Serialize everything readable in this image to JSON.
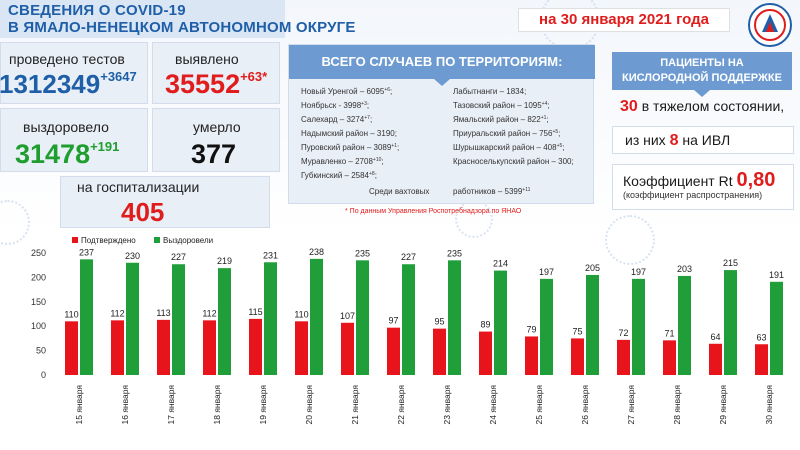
{
  "header": {
    "title_line1": "СВЕДЕНИЯ О COVID-19",
    "title_line2": "В ЯМАЛО-НЕНЕЦКОМ АВТОНОМНОМ ОКРУГЕ",
    "date": "на 30 января 2021 года"
  },
  "stats": {
    "tests_label": "проведено тестов",
    "tests_value": "1312349",
    "tests_delta": "+3647",
    "detected_label": "выявлено",
    "detected_value": "35552",
    "detected_delta": "+63*",
    "recovered_label": "выздоровело",
    "recovered_value": "31478",
    "recovered_delta": "+191",
    "died_label": "умерло",
    "died_value": "377",
    "hosp_label": "на госпитализации",
    "hosp_value": "405"
  },
  "territories": {
    "heading": "ВСЕГО СЛУЧАЕВ ПО ТЕРРИТОРИЯМ:",
    "left": [
      {
        "name": "Новый Уренгой – 6095",
        "delta": "+6"
      },
      {
        "name": "Ноябрьск - 3998",
        "delta": "+3"
      },
      {
        "name": "Салехард – 3274",
        "delta": "+7"
      },
      {
        "name": "Надымский район – 3190",
        "delta": ""
      },
      {
        "name": "Пуровский район – 3089",
        "delta": "+1"
      },
      {
        "name": "Муравленко – 2708",
        "delta": "+10"
      },
      {
        "name": "Губкинский – 2584",
        "delta": "+8"
      }
    ],
    "right": [
      {
        "name": "Лабытнанги – 1834",
        "delta": ""
      },
      {
        "name": "Тазовский район – 1095",
        "delta": "+4"
      },
      {
        "name": "Ямальский район – 822",
        "delta": "+1"
      },
      {
        "name": "Приуральский район – 756",
        "delta": "+5"
      },
      {
        "name": "Шурышкарский район – 408",
        "delta": "+5"
      },
      {
        "name": "Красноселькупский район – 300",
        "delta": ""
      }
    ],
    "shift_label": "Среди вахтовых",
    "shift_label2": "работников – 5399",
    "shift_delta": "+11",
    "note": "* По данным Управления  Роспотребнадзора по ЯНАО"
  },
  "oxygen": {
    "heading_line1": "ПАЦИЕНТЫ НА",
    "heading_line2": "КИСЛОРОДНОЙ ПОДДЕРЖКЕ",
    "severe_value": "30",
    "severe_label": "в тяжелом состоянии,",
    "ivl_prefix": "из них",
    "ivl_value": "8",
    "ivl_mid": "на",
    "ivl_label": "ИВЛ",
    "rt_label": "Коэффициент Rt",
    "rt_value": "0,80",
    "rt_sub": "(коэффициент распространения)"
  },
  "colors": {
    "confirmed": "#e8141c",
    "recovered": "#1f9e3a",
    "accent": "#1f5fa8"
  },
  "chart_data": {
    "type": "bar",
    "categories": [
      "15 января",
      "16 января",
      "17 января",
      "18 января",
      "19 января",
      "20 января",
      "21 января",
      "22 января",
      "23 января",
      "24 января",
      "25 января",
      "26 января",
      "27 января",
      "28 января",
      "29 января",
      "30 января"
    ],
    "series": [
      {
        "name": "Подтверждено",
        "values": [
          110,
          112,
          113,
          112,
          115,
          110,
          107,
          97,
          95,
          89,
          79,
          75,
          72,
          71,
          64,
          63
        ]
      },
      {
        "name": "Выздоровели",
        "values": [
          237,
          230,
          227,
          219,
          231,
          238,
          235,
          227,
          235,
          214,
          197,
          205,
          197,
          203,
          215,
          191
        ]
      }
    ],
    "yticks": [
      "0",
      "50",
      "100",
      "150",
      "200",
      "250"
    ],
    "ylim": [
      0,
      250
    ],
    "legend_position": "top-left"
  }
}
